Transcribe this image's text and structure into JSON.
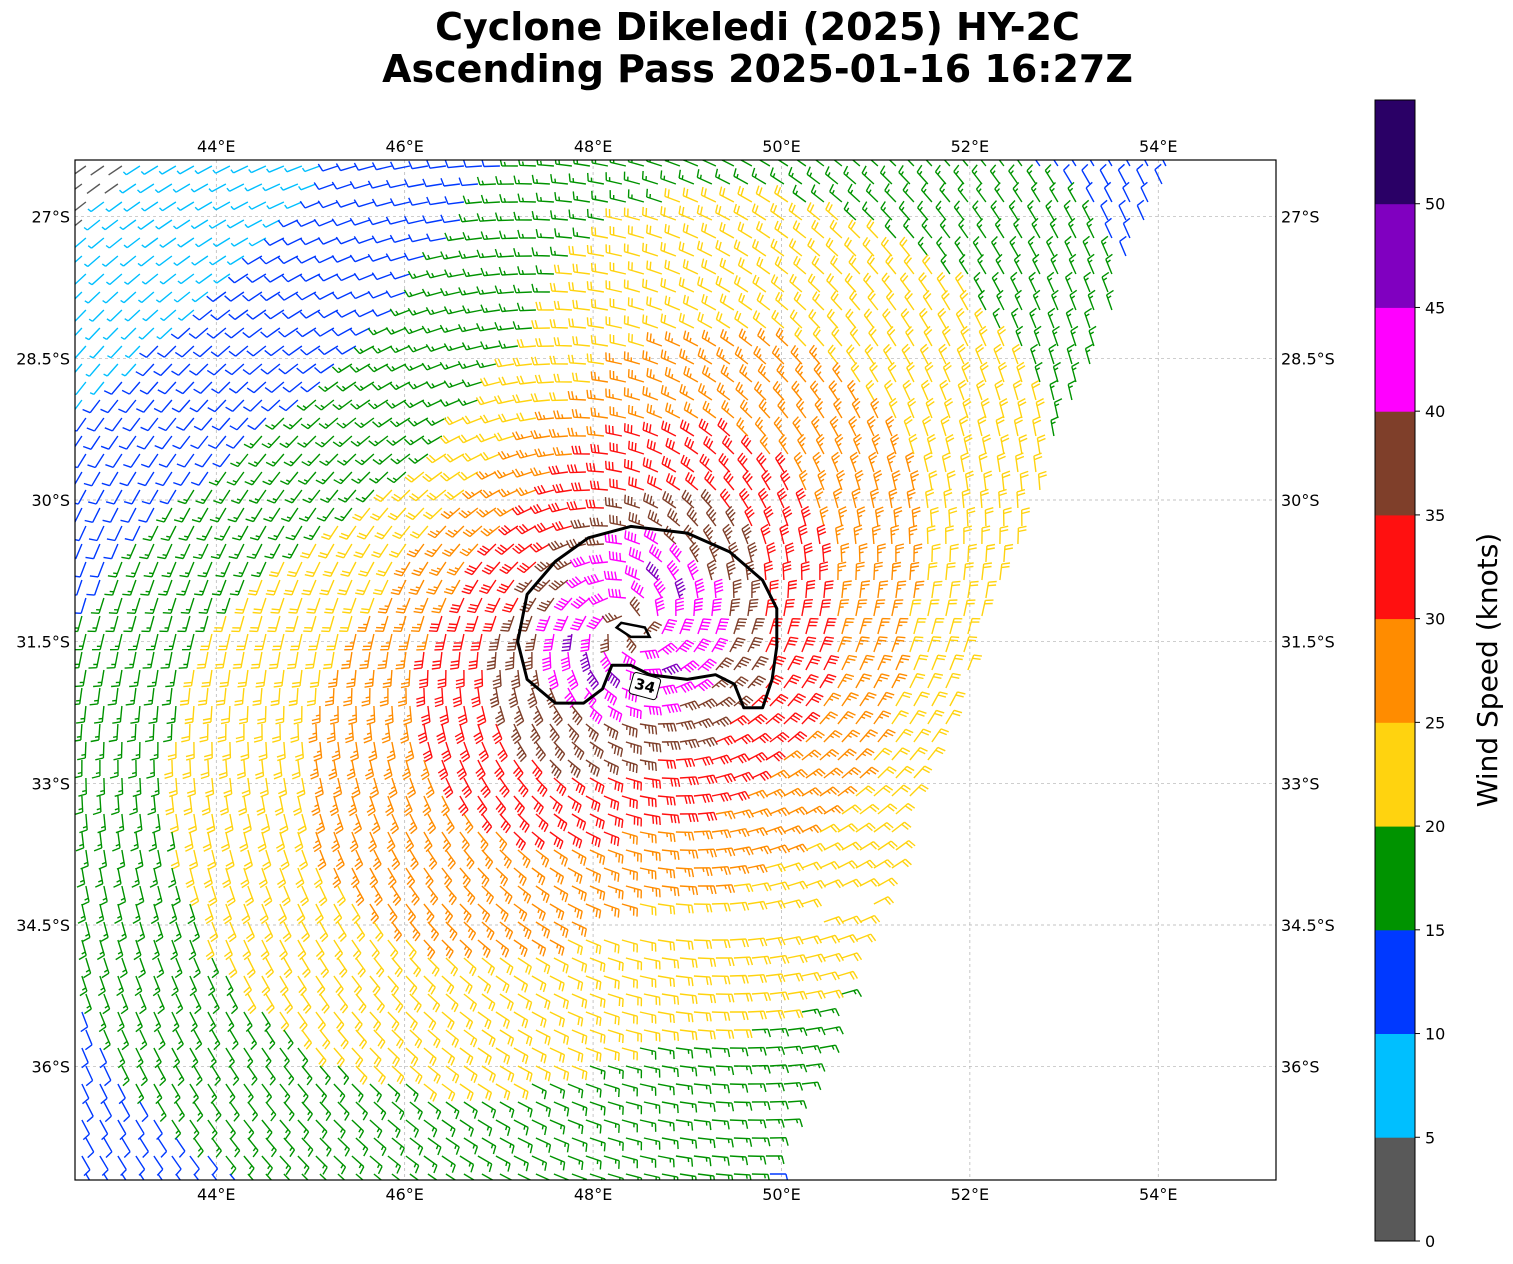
{
  "title": {
    "line1": "Cyclone Dikeledi (2025) HY-2C",
    "line2": "Ascending Pass 2025-01-16 16:27Z"
  },
  "map": {
    "extent": {
      "lon_min": 42.5,
      "lon_max": 55.25,
      "lat_min": -37.2,
      "lat_max": -26.4
    },
    "lon_ticks": [
      {
        "value": 44,
        "label": "44°E"
      },
      {
        "value": 46,
        "label": "46°E"
      },
      {
        "value": 48,
        "label": "48°E"
      },
      {
        "value": 50,
        "label": "50°E"
      },
      {
        "value": 52,
        "label": "52°E"
      },
      {
        "value": 54,
        "label": "54°E"
      }
    ],
    "lat_ticks": [
      {
        "value": -27,
        "label": "27°S"
      },
      {
        "value": -28.5,
        "label": "28.5°S"
      },
      {
        "value": -30,
        "label": "30°S"
      },
      {
        "value": -31.5,
        "label": "31.5°S"
      },
      {
        "value": -33,
        "label": "33°S"
      },
      {
        "value": -34.5,
        "label": "34.5°S"
      },
      {
        "value": -36,
        "label": "36°S"
      }
    ],
    "gridlines": true,
    "storm_center": {
      "lon": 48.4,
      "lat": -31.35
    },
    "swath_edges": {
      "east_top": {
        "lon": 54.2,
        "lat": -26.4
      },
      "east_bottom": {
        "lon": 49.9,
        "lat": -37.2
      },
      "gap_start": {
        "lon": 47.6,
        "lat": -34.5
      },
      "gap_end": {
        "lon": 51.0,
        "lat": -34.3
      }
    },
    "contour": {
      "level_label": "34",
      "points": [
        [
          47.3,
          -31.0
        ],
        [
          47.6,
          -30.65
        ],
        [
          47.95,
          -30.4
        ],
        [
          48.4,
          -30.28
        ],
        [
          49.0,
          -30.35
        ],
        [
          49.45,
          -30.55
        ],
        [
          49.8,
          -30.85
        ],
        [
          49.95,
          -31.15
        ],
        [
          49.95,
          -31.55
        ],
        [
          49.9,
          -31.9
        ],
        [
          49.8,
          -32.2
        ],
        [
          49.6,
          -32.2
        ],
        [
          49.5,
          -31.95
        ],
        [
          49.3,
          -31.85
        ],
        [
          49.0,
          -31.9
        ],
        [
          48.6,
          -31.85
        ],
        [
          48.4,
          -31.75
        ],
        [
          48.2,
          -31.75
        ],
        [
          48.1,
          -32.0
        ],
        [
          47.9,
          -32.15
        ],
        [
          47.6,
          -32.15
        ],
        [
          47.3,
          -31.9
        ],
        [
          47.2,
          -31.5
        ],
        [
          47.3,
          -31.0
        ]
      ],
      "inner_loop": [
        [
          48.3,
          -31.3
        ],
        [
          48.55,
          -31.35
        ],
        [
          48.6,
          -31.45
        ],
        [
          48.4,
          -31.45
        ],
        [
          48.25,
          -31.35
        ],
        [
          48.3,
          -31.3
        ]
      ]
    },
    "wind_colors": [
      "#595959",
      "#00bfff",
      "#0039ff",
      "#009300",
      "#ffd30f",
      "#ff8c00",
      "#ff1010",
      "#7f3f2a",
      "#ff00ff",
      "#8000c0",
      "#2a0066"
    ]
  },
  "colorbar": {
    "label": "Wind Speed (knots)",
    "levels": [
      0,
      5,
      10,
      15,
      20,
      25,
      30,
      35,
      40,
      45,
      50,
      55
    ],
    "tick_labels": [
      "0",
      "5",
      "10",
      "15",
      "20",
      "25",
      "30",
      "35",
      "40",
      "45",
      "50"
    ],
    "colors": [
      "#595959",
      "#00bfff",
      "#0039ff",
      "#009300",
      "#ffd30f",
      "#ff8c00",
      "#ff1010",
      "#7f3f2a",
      "#ff00ff",
      "#8000c0",
      "#2a0066"
    ]
  }
}
